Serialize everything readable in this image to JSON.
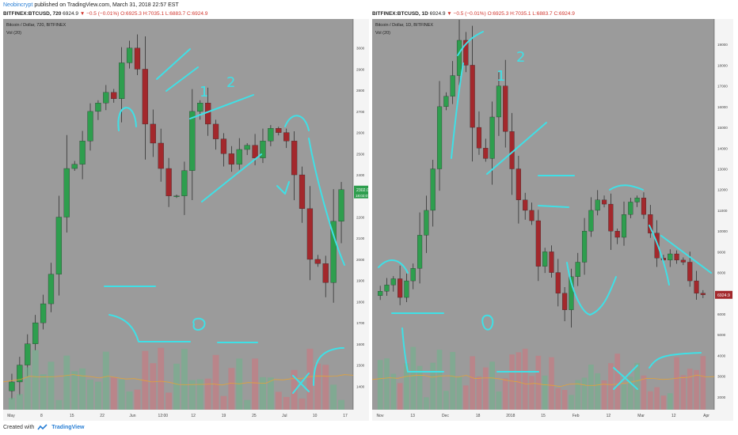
{
  "header": {
    "author": "Neobincrypt",
    "published": "published on TradingView.com, March 31, 2018 22:57 EST"
  },
  "footer": {
    "created": "Created with",
    "brand": "TradingView"
  },
  "colors": {
    "up": "#2e9e4e",
    "down": "#a3282c",
    "pane": "#9b9b9b",
    "drawing": "#3fe0e6",
    "vol_up": "#6bb48a",
    "vol_down": "#d2737b"
  },
  "left_chart": {
    "ohlc": {
      "ticker": "BITFINEX:BTCUSD, 720",
      "last": "6924.9",
      "change": "−0.5 (−0.01%)",
      "o": "O:6925.3",
      "h": "H:7035.1",
      "l": "L:6883.7",
      "c": "C:6924.9"
    },
    "legend_title": "Bitcoin / Dollar, 720, BITFINEX",
    "vol_label": "Vol (20)",
    "price_badge": "2302.0",
    "price_badge_sub": "18:02:07",
    "annotations": [
      "1",
      "2"
    ]
  },
  "right_chart": {
    "ohlc": {
      "ticker": "BITFINEX:BTCUSD, 1D",
      "last": "6924.9",
      "change": "−0.5 (−0.01%)",
      "o": "O:6925.3",
      "h": "H:7035.1",
      "l": "L:6883.7",
      "c": "C:6924.9"
    },
    "legend_title": "Bitcoin / Dollar, 1D, BITFINEX",
    "vol_label": "Vol (20)",
    "price_badge": "6924.9",
    "annotations": [
      "1",
      "2"
    ]
  },
  "chart_data": [
    {
      "type": "candlestick",
      "title": "Bitcoin / Dollar, 720, BITFINEX",
      "ylim": [
        1300,
        3100
      ],
      "y_ticks": [
        1400,
        1500,
        1600,
        1700,
        1800,
        1900,
        2000,
        2100,
        2200,
        2300,
        2400,
        2500,
        2600,
        2700,
        2800,
        2900,
        3000
      ],
      "x_ticks": [
        "May",
        "8",
        "15",
        "22",
        "Jun",
        "12:00",
        "12",
        "19",
        "25",
        "Jul",
        "10",
        "17"
      ],
      "series": [
        {
          "name": "price",
          "values": [
            1420,
            1500,
            1600,
            1700,
            1790,
            1930,
            2200,
            2430,
            2450,
            2560,
            2700,
            2740,
            2790,
            2760,
            2930,
            3000,
            2900,
            2640,
            2550,
            2430,
            2300,
            2300,
            2420,
            2700,
            2740,
            2640,
            2570,
            2500,
            2450,
            2520,
            2540,
            2480,
            2560,
            2620,
            2600,
            2560,
            2400,
            2240,
            2000,
            1980,
            1890,
            2180,
            2330
          ]
        }
      ]
    },
    {
      "type": "candlestick",
      "title": "Bitcoin / Dollar, 1D, BITFINEX",
      "ylim": [
        1500,
        20000
      ],
      "y_ticks": [
        2000,
        3000,
        4000,
        5000,
        6000,
        7000,
        8000,
        9000,
        10000,
        11000,
        12000,
        13000,
        14000,
        15000,
        16000,
        17000,
        18000,
        19000
      ],
      "x_ticks": [
        "Nov",
        "13",
        "Dec",
        "18",
        "2018",
        "15",
        "Feb",
        "12",
        "Mar",
        "12",
        "Apr"
      ],
      "series": [
        {
          "name": "price",
          "values": [
            7100,
            7400,
            7700,
            6800,
            7600,
            8200,
            9800,
            11000,
            13000,
            16000,
            16500,
            17500,
            19200,
            18000,
            15000,
            14000,
            13500,
            15500,
            17000,
            14800,
            13000,
            11500,
            11000,
            10500,
            8300,
            9000,
            8000,
            7000,
            6200,
            7800,
            8500,
            10000,
            11000,
            11500,
            11300,
            10000,
            9700,
            10800,
            11400,
            11600,
            10800,
            9900,
            8700,
            8600,
            8900,
            8600,
            8500,
            7600,
            7000,
            6924.9
          ]
        }
      ]
    }
  ]
}
